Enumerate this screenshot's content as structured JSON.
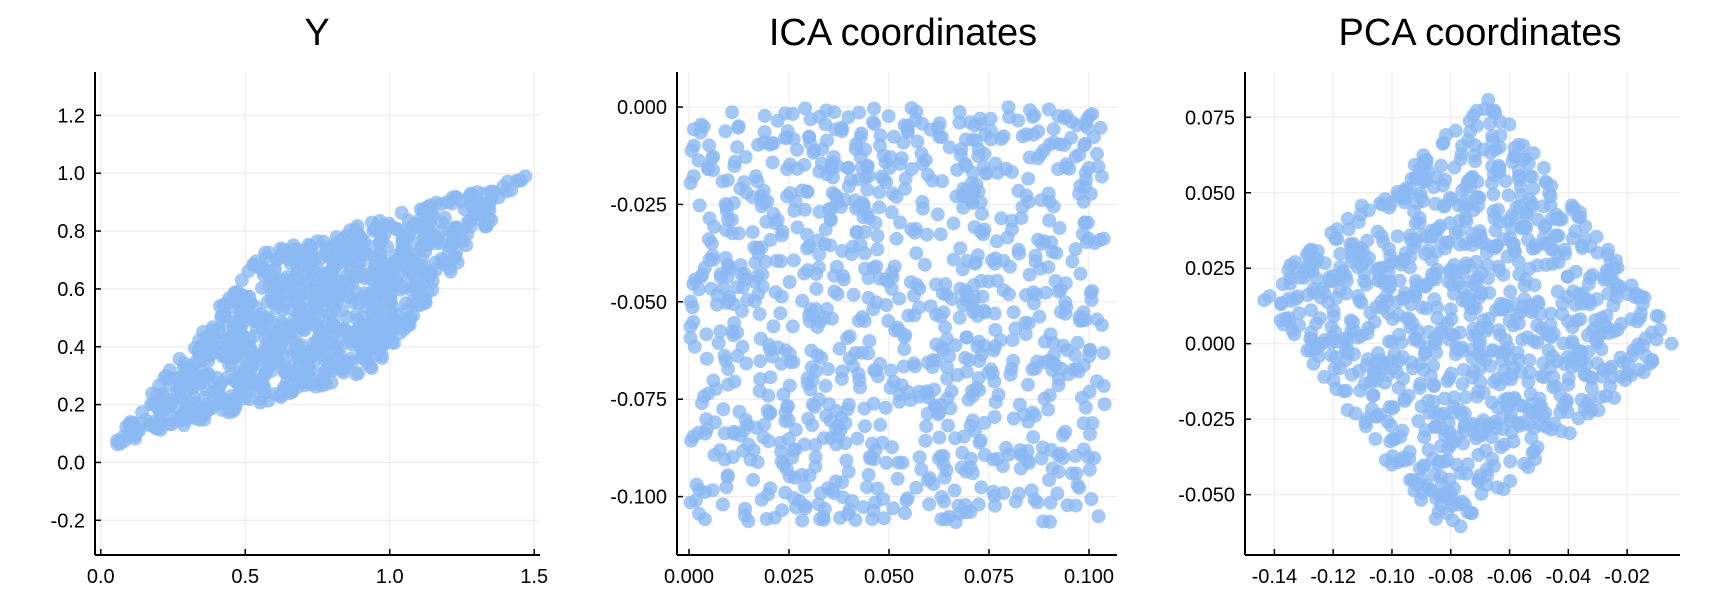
{
  "chart_data": [
    {
      "type": "scatter",
      "title": "Y",
      "xlabel": "",
      "ylabel": "",
      "xlim": [
        -0.02,
        1.52
      ],
      "ylim": [
        -0.32,
        1.35
      ],
      "xticks": [
        0.0,
        0.5,
        1.0,
        1.5
      ],
      "xtick_labels": [
        "0.0",
        "0.5",
        "1.0",
        "1.5"
      ],
      "yticks": [
        -0.2,
        0.0,
        0.2,
        0.4,
        0.6,
        0.8,
        1.0,
        1.2
      ],
      "ytick_labels": [
        "-0.2",
        "0.0",
        "0.2",
        "0.4",
        "0.6",
        "0.8",
        "1.0",
        "1.2"
      ],
      "grid": true,
      "legend": "none",
      "color": "#8ab9f2",
      "distribution": {
        "shape": "parallelogram",
        "n": 1000,
        "corners": [
          [
            0.03,
            0.05
          ],
          [
            0.55,
            0.72
          ],
          [
            1.47,
            0.99
          ],
          [
            0.95,
            0.32
          ]
        ]
      }
    },
    {
      "type": "scatter",
      "title": "ICA coordinates",
      "xlabel": "",
      "ylabel": "",
      "xlim": [
        -0.003,
        0.107
      ],
      "ylim": [
        -0.115,
        0.009
      ],
      "xticks": [
        0.0,
        0.025,
        0.05,
        0.075,
        0.1
      ],
      "xtick_labels": [
        "0.000",
        "0.025",
        "0.050",
        "0.075",
        "0.100"
      ],
      "yticks": [
        0.0,
        -0.025,
        -0.05,
        -0.075,
        -0.1
      ],
      "ytick_labels": [
        "0.000",
        "-0.025",
        "-0.050",
        "-0.075",
        "-0.100"
      ],
      "grid": true,
      "legend": "none",
      "color": "#8ab9f2",
      "distribution": {
        "shape": "uniform-square",
        "n": 1000,
        "x_range": [
          0.0,
          0.104
        ],
        "y_range": [
          -0.107,
          0.0
        ]
      }
    },
    {
      "type": "scatter",
      "title": "PCA coordinates",
      "xlabel": "",
      "ylabel": "",
      "xlim": [
        -0.15,
        -0.002
      ],
      "ylim": [
        -0.07,
        0.09
      ],
      "xticks": [
        -0.14,
        -0.12,
        -0.1,
        -0.08,
        -0.06,
        -0.04,
        -0.02
      ],
      "xtick_labels": [
        "-0.14",
        "-0.12",
        "-0.10",
        "-0.08",
        "-0.06",
        "-0.04",
        "-0.02"
      ],
      "yticks": [
        0.075,
        0.05,
        0.025,
        0.0,
        -0.025,
        -0.05
      ],
      "ytick_labels": [
        "0.075",
        "0.050",
        "0.025",
        "0.000",
        "-0.025",
        "-0.050"
      ],
      "grid": true,
      "legend": "none",
      "color": "#8ab9f2",
      "distribution": {
        "shape": "diamond",
        "n": 1000,
        "corners": [
          [
            -0.146,
            0.017
          ],
          [
            -0.066,
            0.082
          ],
          [
            -0.005,
            0.004
          ],
          [
            -0.082,
            -0.065
          ]
        ]
      }
    }
  ]
}
